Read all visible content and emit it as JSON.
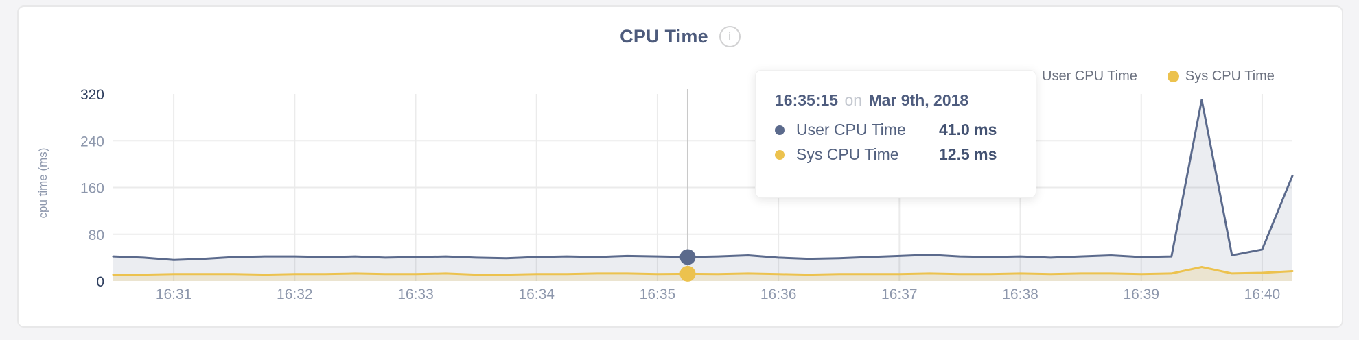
{
  "page": {
    "background": "#f4f4f6"
  },
  "panel": {
    "background": "#ffffff",
    "border_color": "#e8e8e9"
  },
  "header": {
    "title": "CPU Time",
    "info_icon_glyph": "i"
  },
  "legend": {
    "items": [
      {
        "label": "User CPU Time",
        "color": "#5b6a8c"
      },
      {
        "label": "Sys CPU Time",
        "color": "#ecc24e"
      }
    ]
  },
  "tooltip": {
    "time": "16:35:15",
    "connector": "on",
    "date": "Mar 9th, 2018",
    "rows": [
      {
        "label": "User CPU Time",
        "value": "41.0 ms",
        "color": "#5b6a8c"
      },
      {
        "label": "Sys CPU Time",
        "value": "12.5 ms",
        "color": "#ecc24e"
      }
    ]
  },
  "chart_data": {
    "type": "area",
    "title": "CPU Time",
    "ylabel": "cpu time (ms)",
    "ylim": [
      0,
      320
    ],
    "y_ticks": [
      0,
      80,
      160,
      240,
      320
    ],
    "y_emphasized_ticks": [
      0,
      320
    ],
    "x_tick_labels": [
      "16:31",
      "16:32",
      "16:33",
      "16:34",
      "16:35",
      "16:36",
      "16:37",
      "16:38",
      "16:39",
      "16:40"
    ],
    "grid": "on",
    "legend_position": "top-right",
    "date": "Mar 9th, 2018",
    "interval_seconds": 15,
    "active_index": 19,
    "active_time": "16:35:15",
    "times": [
      "16:30:30",
      "16:30:45",
      "16:31:00",
      "16:31:15",
      "16:31:30",
      "16:31:45",
      "16:32:00",
      "16:32:15",
      "16:32:30",
      "16:32:45",
      "16:33:00",
      "16:33:15",
      "16:33:30",
      "16:33:45",
      "16:34:00",
      "16:34:15",
      "16:34:30",
      "16:34:45",
      "16:35:00",
      "16:35:15",
      "16:35:30",
      "16:35:45",
      "16:36:00",
      "16:36:15",
      "16:36:30",
      "16:36:45",
      "16:37:00",
      "16:37:15",
      "16:37:30",
      "16:37:45",
      "16:38:00",
      "16:38:15",
      "16:38:30",
      "16:38:45",
      "16:39:00",
      "16:39:15",
      "16:39:30",
      "16:39:45",
      "16:40:00",
      "16:40:15"
    ],
    "series": [
      {
        "name": "User CPU Time",
        "color": "#5b6a8c",
        "fill": "rgba(91,106,140,0.12)",
        "values": [
          42,
          40,
          36,
          38,
          41,
          42,
          42,
          41,
          42,
          40,
          41,
          42,
          40,
          39,
          41,
          42,
          41,
          43,
          42,
          41,
          42,
          44,
          40,
          38,
          39,
          41,
          43,
          45,
          42,
          41,
          42,
          40,
          42,
          44,
          41,
          42,
          310,
          44,
          54,
          180
        ]
      },
      {
        "name": "Sys CPU Time",
        "color": "#ecc24e",
        "fill": "rgba(236,194,78,0.20)",
        "values": [
          11,
          11,
          12,
          12,
          12,
          11,
          12,
          12,
          13,
          12,
          12,
          13,
          11,
          11,
          12,
          12,
          13,
          13,
          12,
          12.5,
          12,
          13,
          12,
          11,
          12,
          12,
          12,
          13,
          12,
          12,
          13,
          12,
          13,
          13,
          12,
          13,
          24,
          13,
          14,
          17
        ]
      }
    ],
    "crosshair_color": "#c9c9c9",
    "gridline_color": "#ebebeb",
    "tick_color": "#8d97ac",
    "tick_emphasis_color": "#2f3f5f"
  }
}
